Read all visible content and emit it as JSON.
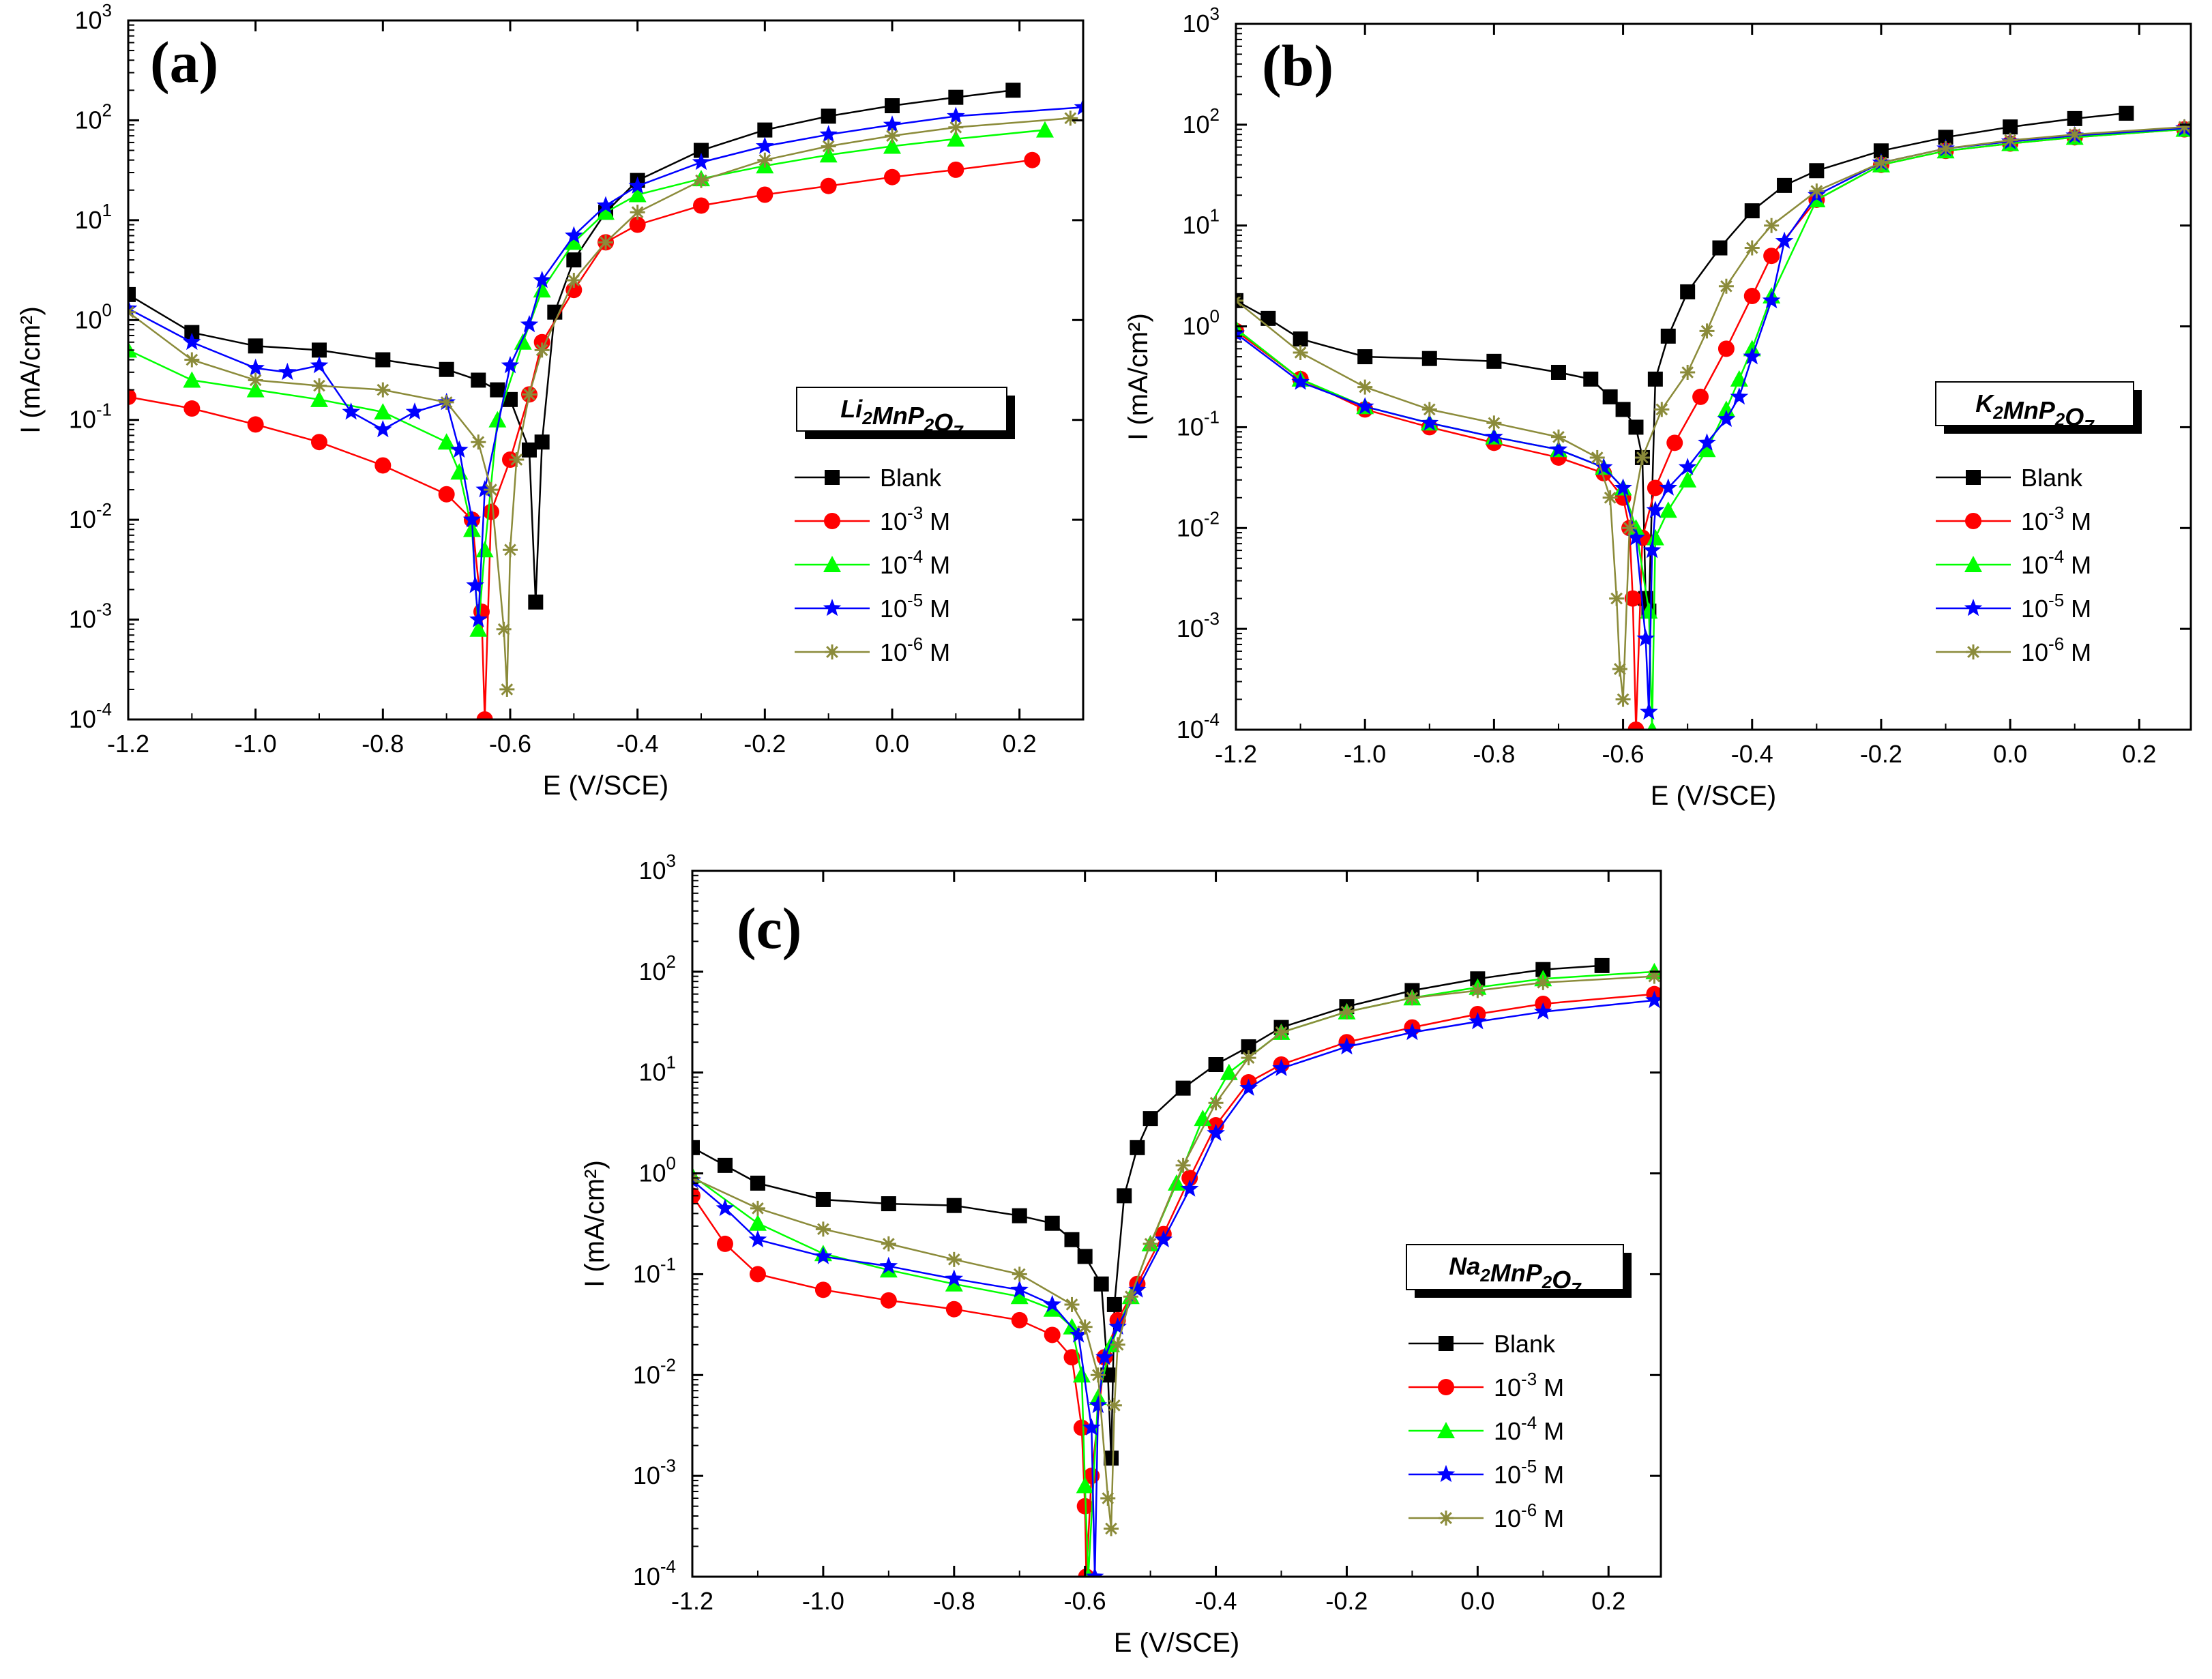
{
  "figure": {
    "description_labels": [
      "(a)",
      "(b)",
      "(c)"
    ]
  },
  "chart_data": [
    {
      "type": "line",
      "panel": "(a)",
      "compound": {
        "parts": [
          [
            "Li",
            "2"
          ],
          [
            "MnP",
            "2"
          ],
          [
            "O",
            "7"
          ]
        ]
      },
      "xlabel": "E (V/SCE)",
      "ylabel": "I (mA/cm²)",
      "yscale": "log",
      "xlim": [
        -1.2,
        0.3
      ],
      "ylim": [
        0.0001,
        1000
      ],
      "xticks": [
        -1.2,
        -1.0,
        -0.8,
        -0.6,
        -0.4,
        -0.2,
        0.0,
        0.2
      ],
      "xtick_labels": [
        "-1.2",
        "-1.0",
        "-0.8",
        "-0.6",
        "-0.4",
        "-0.2",
        "0.0",
        "0.2"
      ],
      "yticks": [
        -4,
        -3,
        -2,
        -1,
        0,
        1,
        2,
        3
      ],
      "legend_position": "right",
      "series": [
        {
          "name": "Blank",
          "sup": "",
          "suffix": "",
          "color": "#000000",
          "marker": "square",
          "x": [
            -1.2,
            -1.1,
            -1.0,
            -0.9,
            -0.8,
            -0.7,
            -0.65,
            -0.62,
            -0.6,
            -0.57,
            -0.56,
            -0.55,
            -0.53,
            -0.5,
            -0.45,
            -0.4,
            -0.3,
            -0.2,
            -0.1,
            0.0,
            0.1,
            0.19
          ],
          "y": [
            1.8,
            0.75,
            0.55,
            0.5,
            0.4,
            0.32,
            0.25,
            0.2,
            0.16,
            0.05,
            0.0015,
            0.06,
            1.2,
            4,
            12,
            25,
            50,
            80,
            110,
            140,
            170,
            200
          ]
        },
        {
          "name": "10",
          "sup": "-3",
          "suffix": " M",
          "color": "#ff0000",
          "marker": "circle",
          "x": [
            -1.2,
            -1.1,
            -1.0,
            -0.9,
            -0.8,
            -0.7,
            -0.66,
            -0.645,
            -0.64,
            -0.63,
            -0.6,
            -0.57,
            -0.55,
            -0.5,
            -0.45,
            -0.4,
            -0.3,
            -0.2,
            -0.1,
            0.0,
            0.1,
            0.22
          ],
          "y": [
            0.17,
            0.13,
            0.09,
            0.06,
            0.035,
            0.018,
            0.01,
            0.0012,
            0.0001,
            0.012,
            0.04,
            0.18,
            0.6,
            2,
            6,
            9,
            14,
            18,
            22,
            27,
            32,
            40
          ]
        },
        {
          "name": "10",
          "sup": "-4",
          "suffix": " M",
          "color": "#00ff00",
          "marker": "triangle",
          "x": [
            -1.2,
            -1.1,
            -1.0,
            -0.9,
            -0.8,
            -0.7,
            -0.68,
            -0.66,
            -0.65,
            -0.64,
            -0.62,
            -0.58,
            -0.55,
            -0.5,
            -0.45,
            -0.4,
            -0.3,
            -0.2,
            -0.1,
            0.0,
            0.1,
            0.24
          ],
          "y": [
            0.5,
            0.25,
            0.2,
            0.16,
            0.12,
            0.06,
            0.03,
            0.008,
            0.0008,
            0.005,
            0.1,
            0.6,
            2,
            6,
            12,
            18,
            26,
            35,
            45,
            55,
            65,
            80
          ]
        },
        {
          "name": "10",
          "sup": "-5",
          "suffix": " M",
          "color": "#0000ff",
          "marker": "star",
          "x": [
            -1.2,
            -1.1,
            -1.0,
            -0.95,
            -0.9,
            -0.85,
            -0.8,
            -0.75,
            -0.7,
            -0.68,
            -0.66,
            -0.655,
            -0.65,
            -0.64,
            -0.6,
            -0.57,
            -0.55,
            -0.5,
            -0.45,
            -0.4,
            -0.3,
            -0.2,
            -0.1,
            0.0,
            0.1,
            0.3
          ],
          "y": [
            1.3,
            0.6,
            0.33,
            0.3,
            0.35,
            0.12,
            0.08,
            0.12,
            0.15,
            0.05,
            0.01,
            0.0022,
            0.001,
            0.02,
            0.35,
            0.9,
            2.5,
            7,
            14,
            22,
            38,
            55,
            72,
            90,
            110,
            135
          ]
        },
        {
          "name": "10",
          "sup": "-6",
          "suffix": " M",
          "color": "#8b8b3a",
          "marker": "asterisk",
          "x": [
            -1.2,
            -1.1,
            -1.0,
            -0.9,
            -0.8,
            -0.7,
            -0.65,
            -0.63,
            -0.61,
            -0.605,
            -0.6,
            -0.59,
            -0.57,
            -0.55,
            -0.5,
            -0.45,
            -0.4,
            -0.3,
            -0.2,
            -0.1,
            0.0,
            0.1,
            0.28
          ],
          "y": [
            1.2,
            0.4,
            0.25,
            0.22,
            0.2,
            0.15,
            0.06,
            0.02,
            0.0008,
            0.0002,
            0.005,
            0.04,
            0.18,
            0.5,
            2.5,
            6,
            12,
            25,
            40,
            55,
            70,
            85,
            105
          ]
        }
      ]
    },
    {
      "type": "line",
      "panel": "(b)",
      "compound": {
        "parts": [
          [
            "K",
            "2"
          ],
          [
            "MnP",
            "2"
          ],
          [
            "O",
            "7"
          ]
        ]
      },
      "xlabel": "E (V/SCE)",
      "ylabel": "I (mA/cm²)",
      "yscale": "log",
      "xlim": [
        -1.2,
        0.28
      ],
      "ylim": [
        0.0001,
        1000
      ],
      "xticks": [
        -1.2,
        -1.0,
        -0.8,
        -0.6,
        -0.4,
        -0.2,
        0.0,
        0.2
      ],
      "xtick_labels": [
        "-1.2",
        "-1.0",
        "-0.8",
        "-0.6",
        "-0.4",
        "-0.2",
        "0.0",
        "0.2"
      ],
      "yticks": [
        -4,
        -3,
        -2,
        -1,
        0,
        1,
        2,
        3
      ],
      "legend_position": "right",
      "series": [
        {
          "name": "Blank",
          "sup": "",
          "suffix": "",
          "color": "#000000",
          "marker": "square",
          "x": [
            -1.2,
            -1.15,
            -1.1,
            -1.0,
            -0.9,
            -0.8,
            -0.7,
            -0.65,
            -0.62,
            -0.6,
            -0.58,
            -0.57,
            -0.565,
            -0.56,
            -0.55,
            -0.53,
            -0.5,
            -0.45,
            -0.4,
            -0.35,
            -0.3,
            -0.2,
            -0.1,
            0.0,
            0.1,
            0.18
          ],
          "y": [
            1.8,
            1.2,
            0.75,
            0.5,
            0.48,
            0.45,
            0.35,
            0.3,
            0.2,
            0.15,
            0.1,
            0.05,
            0.002,
            0.0015,
            0.3,
            0.8,
            2.2,
            6,
            14,
            25,
            35,
            55,
            75,
            95,
            115,
            130
          ]
        },
        {
          "name": "10",
          "sup": "-3",
          "suffix": " M",
          "color": "#ff0000",
          "marker": "circle",
          "x": [
            -1.2,
            -1.1,
            -1.0,
            -0.9,
            -0.8,
            -0.7,
            -0.63,
            -0.6,
            -0.59,
            -0.585,
            -0.58,
            -0.57,
            -0.55,
            -0.52,
            -0.48,
            -0.44,
            -0.4,
            -0.37,
            -0.3,
            -0.2,
            -0.1,
            0.0,
            0.1,
            0.27
          ],
          "y": [
            0.9,
            0.3,
            0.15,
            0.1,
            0.07,
            0.05,
            0.035,
            0.02,
            0.01,
            0.002,
            0.0001,
            0.008,
            0.025,
            0.07,
            0.2,
            0.6,
            2,
            5,
            18,
            40,
            55,
            65,
            75,
            90
          ]
        },
        {
          "name": "10",
          "sup": "-4",
          "suffix": " M",
          "color": "#00ff00",
          "marker": "triangle",
          "x": [
            -1.2,
            -1.1,
            -1.0,
            -0.9,
            -0.8,
            -0.7,
            -0.63,
            -0.6,
            -0.58,
            -0.56,
            -0.555,
            -0.55,
            -0.53,
            -0.5,
            -0.47,
            -0.44,
            -0.42,
            -0.4,
            -0.37,
            -0.3,
            -0.2,
            -0.1,
            0.0,
            0.1,
            0.27
          ],
          "y": [
            0.95,
            0.3,
            0.16,
            0.11,
            0.08,
            0.06,
            0.04,
            0.025,
            0.01,
            0.0015,
            0.0001,
            0.008,
            0.015,
            0.03,
            0.06,
            0.15,
            0.3,
            0.6,
            2,
            18,
            40,
            55,
            65,
            75,
            90
          ]
        },
        {
          "name": "10",
          "sup": "-5",
          "suffix": " M",
          "color": "#0000ff",
          "marker": "star",
          "x": [
            -1.2,
            -1.1,
            -1.0,
            -0.9,
            -0.8,
            -0.7,
            -0.63,
            -0.6,
            -0.58,
            -0.565,
            -0.56,
            -0.555,
            -0.55,
            -0.53,
            -0.5,
            -0.47,
            -0.44,
            -0.42,
            -0.4,
            -0.37,
            -0.35,
            -0.3,
            -0.2,
            -0.1,
            0.0,
            0.1,
            0.27
          ],
          "y": [
            0.85,
            0.28,
            0.16,
            0.11,
            0.08,
            0.06,
            0.04,
            0.025,
            0.008,
            0.0008,
            0.00015,
            0.006,
            0.015,
            0.025,
            0.04,
            0.07,
            0.12,
            0.2,
            0.5,
            1.8,
            7,
            20,
            42,
            58,
            68,
            78,
            92
          ]
        },
        {
          "name": "10",
          "sup": "-6",
          "suffix": " M",
          "color": "#8b8b3a",
          "marker": "asterisk",
          "x": [
            -1.2,
            -1.1,
            -1.0,
            -0.9,
            -0.8,
            -0.7,
            -0.64,
            -0.62,
            -0.61,
            -0.605,
            -0.6,
            -0.59,
            -0.57,
            -0.54,
            -0.5,
            -0.47,
            -0.44,
            -0.4,
            -0.37,
            -0.3,
            -0.2,
            -0.1,
            0.0,
            0.1,
            0.27
          ],
          "y": [
            1.8,
            0.55,
            0.25,
            0.15,
            0.11,
            0.08,
            0.05,
            0.02,
            0.002,
            0.0004,
            0.0002,
            0.01,
            0.05,
            0.15,
            0.35,
            0.9,
            2.5,
            6,
            10,
            22,
            42,
            58,
            70,
            80,
            95
          ]
        }
      ]
    },
    {
      "type": "line",
      "panel": "(c)",
      "compound": {
        "parts": [
          [
            "Na",
            "2"
          ],
          [
            "MnP",
            "2"
          ],
          [
            "O",
            "7"
          ]
        ]
      },
      "xlabel": "E (V/SCE)",
      "ylabel": "I (mA/cm²)",
      "yscale": "log",
      "xlim": [
        -1.2,
        0.28
      ],
      "ylim": [
        0.0001,
        1000
      ],
      "xticks": [
        -1.2,
        -1.0,
        -0.8,
        -0.6,
        -0.4,
        -0.2,
        0.0,
        0.2
      ],
      "xtick_labels": [
        "-1.2",
        "-1.0",
        "-0.8",
        "-0.6",
        "-0.4",
        "-0.2",
        "0.0",
        "0.2"
      ],
      "yticks": [
        -4,
        -3,
        -2,
        -1,
        0,
        1,
        2,
        3
      ],
      "legend_position": "right",
      "series": [
        {
          "name": "Blank",
          "sup": "",
          "suffix": "",
          "color": "#000000",
          "marker": "square",
          "x": [
            -1.2,
            -1.15,
            -1.1,
            -1.0,
            -0.9,
            -0.8,
            -0.7,
            -0.65,
            -0.62,
            -0.6,
            -0.575,
            -0.565,
            -0.56,
            -0.555,
            -0.54,
            -0.52,
            -0.5,
            -0.45,
            -0.4,
            -0.35,
            -0.3,
            -0.2,
            -0.1,
            0.0,
            0.1,
            0.19
          ],
          "y": [
            1.8,
            1.2,
            0.8,
            0.55,
            0.5,
            0.48,
            0.38,
            0.32,
            0.22,
            0.15,
            0.08,
            0.01,
            0.0015,
            0.05,
            0.6,
            1.8,
            3.5,
            7,
            12,
            18,
            28,
            45,
            65,
            85,
            105,
            115
          ]
        },
        {
          "name": "10",
          "sup": "-3",
          "suffix": " M",
          "color": "#ff0000",
          "marker": "circle",
          "x": [
            -1.2,
            -1.15,
            -1.1,
            -1.0,
            -0.9,
            -0.8,
            -0.7,
            -0.65,
            -0.62,
            -0.605,
            -0.6,
            -0.598,
            -0.59,
            -0.57,
            -0.55,
            -0.52,
            -0.48,
            -0.44,
            -0.4,
            -0.35,
            -0.3,
            -0.2,
            -0.1,
            0.0,
            0.1,
            0.27
          ],
          "y": [
            0.6,
            0.2,
            0.1,
            0.07,
            0.055,
            0.045,
            0.035,
            0.025,
            0.015,
            0.003,
            0.0005,
            0.0001,
            0.001,
            0.015,
            0.035,
            0.08,
            0.25,
            0.9,
            3,
            8,
            12,
            20,
            28,
            38,
            48,
            60
          ]
        },
        {
          "name": "10",
          "sup": "-4",
          "suffix": " M",
          "color": "#00ff00",
          "marker": "triangle",
          "x": [
            -1.2,
            -1.1,
            -1.0,
            -0.9,
            -0.8,
            -0.7,
            -0.65,
            -0.62,
            -0.605,
            -0.6,
            -0.595,
            -0.58,
            -0.56,
            -0.53,
            -0.5,
            -0.46,
            -0.42,
            -0.38,
            -0.3,
            -0.2,
            -0.1,
            0.0,
            0.1,
            0.27
          ],
          "y": [
            0.95,
            0.32,
            0.16,
            0.11,
            0.08,
            0.06,
            0.045,
            0.03,
            0.01,
            0.0008,
            0.0001,
            0.006,
            0.02,
            0.06,
            0.2,
            0.8,
            3.5,
            10,
            25,
            40,
            55,
            70,
            85,
            100
          ]
        },
        {
          "name": "10",
          "sup": "-5",
          "suffix": " M",
          "color": "#0000ff",
          "marker": "star",
          "x": [
            -1.2,
            -1.15,
            -1.1,
            -1.0,
            -0.9,
            -0.8,
            -0.7,
            -0.65,
            -0.61,
            -0.59,
            -0.585,
            -0.58,
            -0.57,
            -0.55,
            -0.52,
            -0.48,
            -0.44,
            -0.4,
            -0.35,
            -0.3,
            -0.2,
            -0.1,
            0.0,
            0.1,
            0.27
          ],
          "y": [
            0.85,
            0.45,
            0.22,
            0.15,
            0.12,
            0.09,
            0.07,
            0.05,
            0.025,
            0.003,
            0.0001,
            0.005,
            0.015,
            0.03,
            0.07,
            0.22,
            0.7,
            2.5,
            7,
            11,
            18,
            25,
            32,
            40,
            52
          ]
        },
        {
          "name": "10",
          "sup": "-6",
          "suffix": " M",
          "color": "#8b8b3a",
          "marker": "asterisk",
          "x": [
            -1.2,
            -1.1,
            -1.0,
            -0.9,
            -0.8,
            -0.7,
            -0.62,
            -0.6,
            -0.58,
            -0.565,
            -0.56,
            -0.555,
            -0.55,
            -0.53,
            -0.5,
            -0.45,
            -0.4,
            -0.35,
            -0.3,
            -0.2,
            -0.1,
            0.0,
            0.1,
            0.27
          ],
          "y": [
            0.9,
            0.45,
            0.28,
            0.2,
            0.14,
            0.1,
            0.05,
            0.03,
            0.01,
            0.0006,
            0.0003,
            0.005,
            0.02,
            0.06,
            0.2,
            1.2,
            5,
            14,
            25,
            40,
            55,
            65,
            78,
            90
          ]
        }
      ]
    }
  ]
}
